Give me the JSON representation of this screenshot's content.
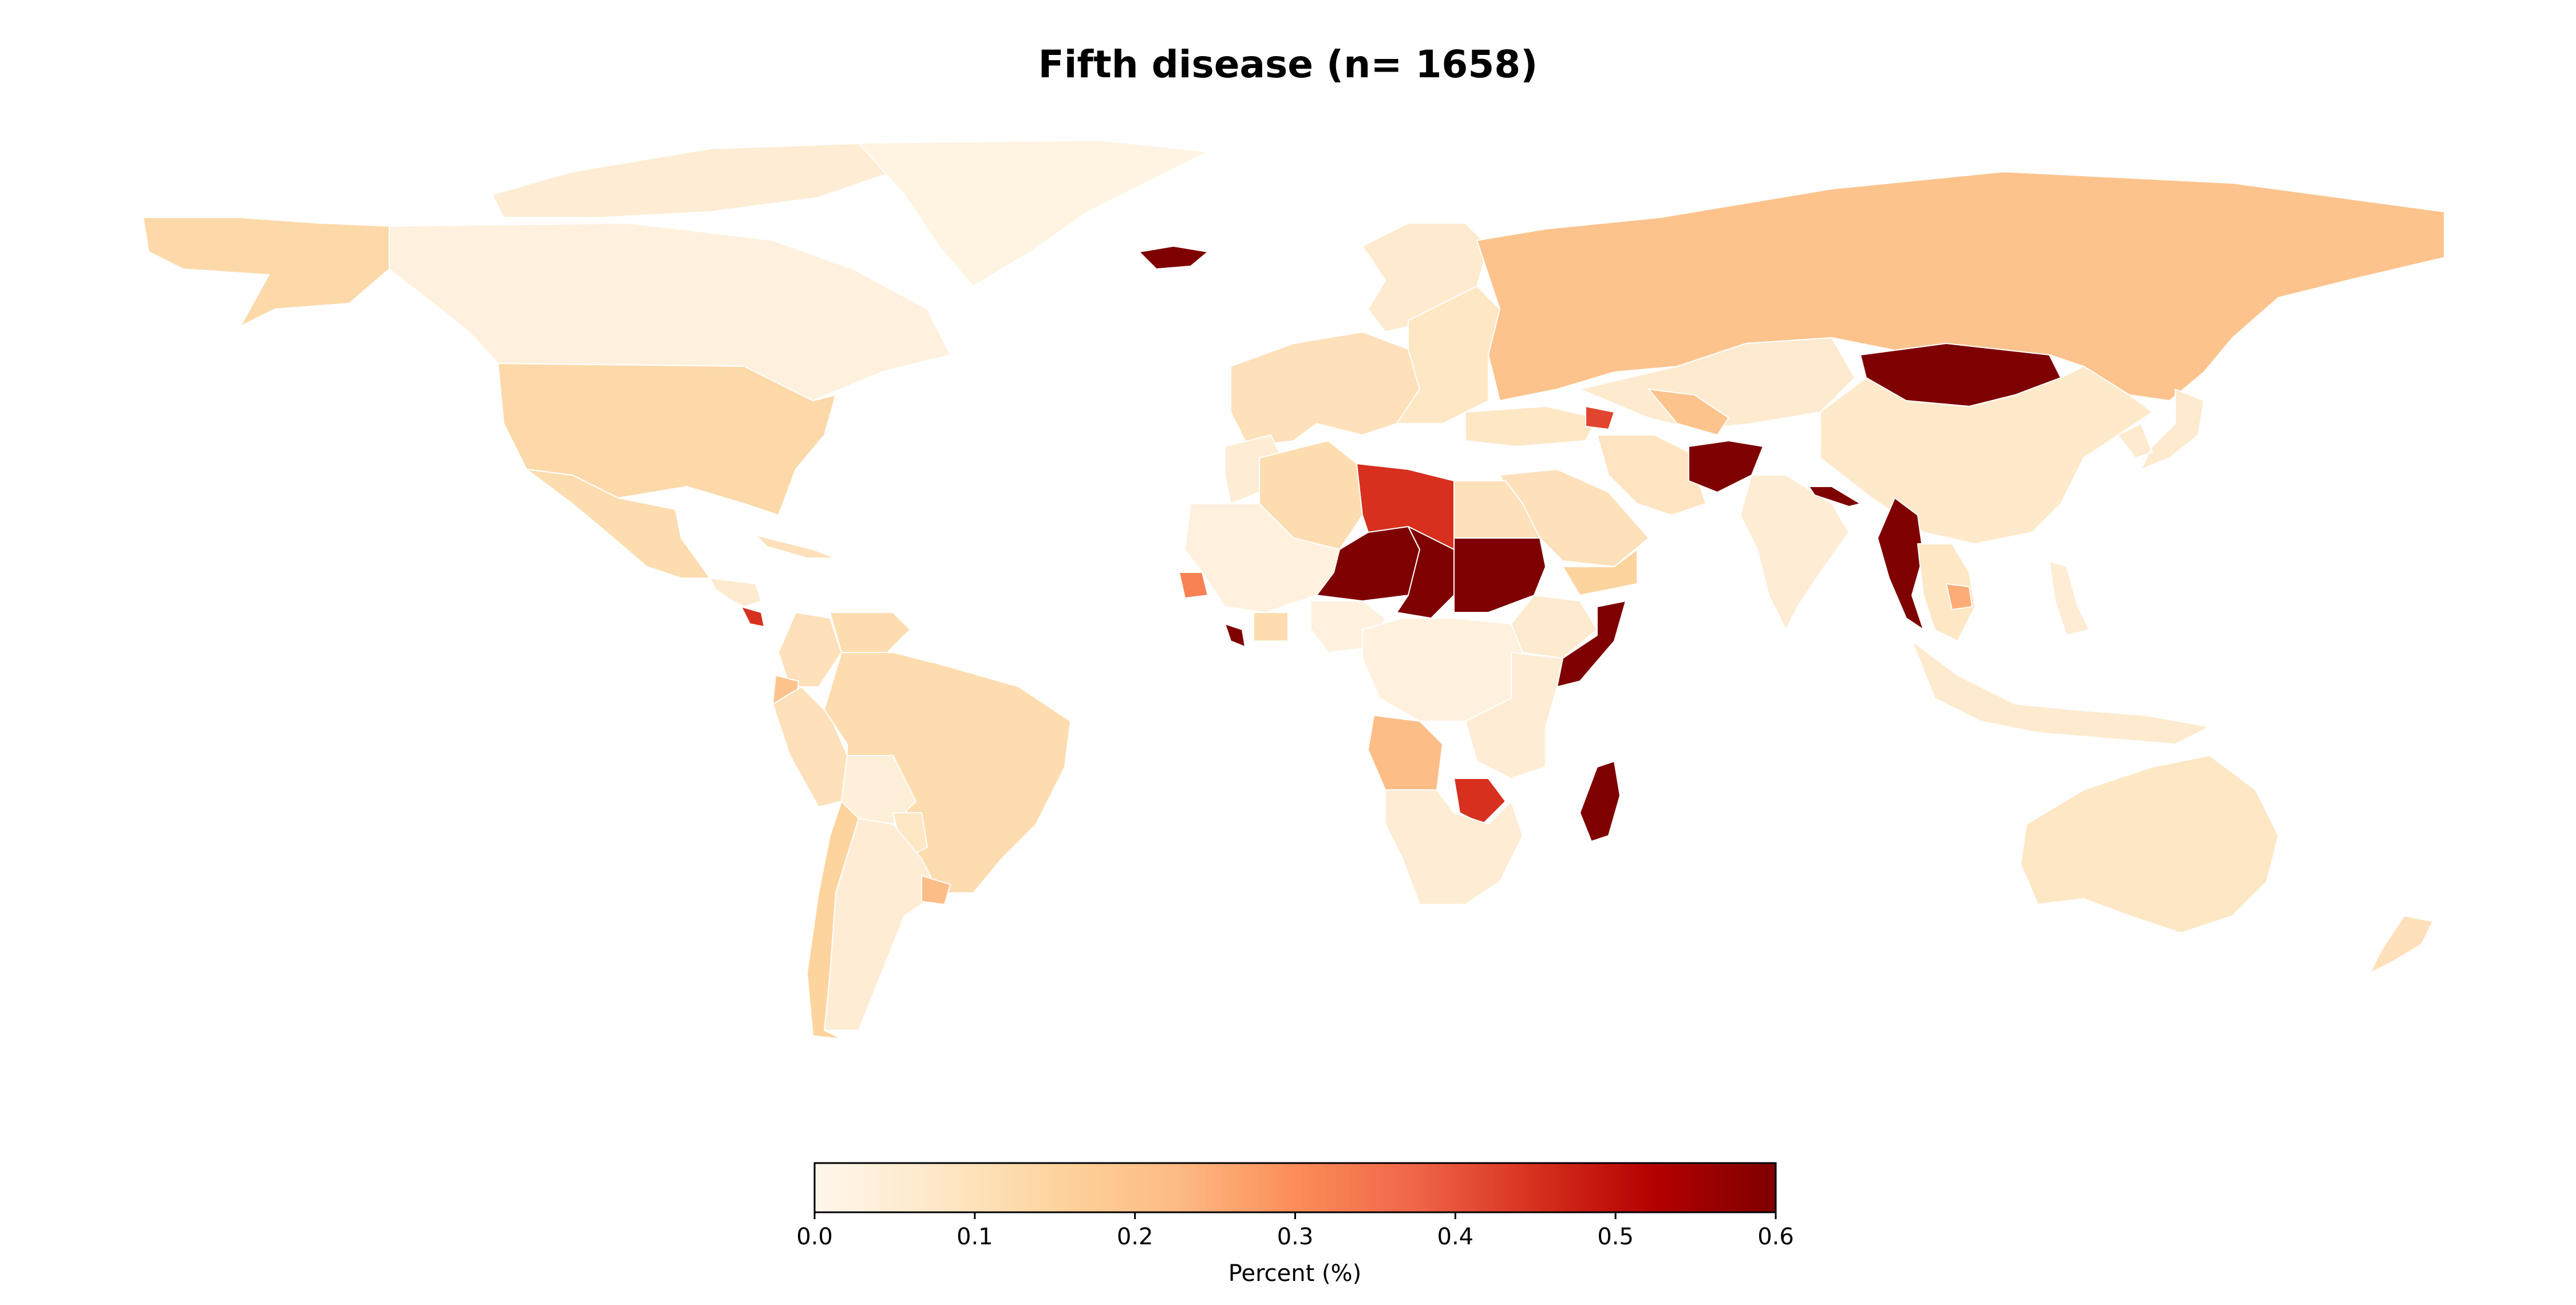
{
  "title": "Fifth disease (n= 1658)",
  "colormap": {
    "name": "OrRd",
    "stops": [
      "#fff7ec",
      "#fee8c8",
      "#fdd49e",
      "#fdbb84",
      "#fc8d59",
      "#ef6548",
      "#d7301f",
      "#b30000",
      "#7f0000"
    ]
  },
  "colorbar": {
    "label": "Percent (%)",
    "min": 0.0,
    "max": 0.6,
    "ticks": [
      "0.0",
      "0.1",
      "0.2",
      "0.3",
      "0.4",
      "0.5",
      "0.6"
    ]
  },
  "chart_data": {
    "type": "choropleth",
    "title": "Fifth disease (n= 1658)",
    "value_label": "Percent (%)",
    "range": [
      0.0,
      0.6
    ],
    "regions": [
      {
        "name": "Canada",
        "value": 0.03
      },
      {
        "name": "Arctic Islands",
        "value": 0.05
      },
      {
        "name": "Greenland",
        "value": 0.02
      },
      {
        "name": "Alaska",
        "value": 0.13
      },
      {
        "name": "USA",
        "value": 0.13
      },
      {
        "name": "Mexico",
        "value": 0.12
      },
      {
        "name": "Central America",
        "value": 0.06
      },
      {
        "name": "Costa Rica",
        "value": 0.45
      },
      {
        "name": "Cuba",
        "value": 0.1
      },
      {
        "name": "Colombia",
        "value": 0.1
      },
      {
        "name": "Venezuela",
        "value": 0.12
      },
      {
        "name": "Ecuador",
        "value": 0.2
      },
      {
        "name": "Peru",
        "value": 0.1
      },
      {
        "name": "Brazil",
        "value": 0.12
      },
      {
        "name": "Bolivia",
        "value": 0.04
      },
      {
        "name": "Paraguay",
        "value": 0.08
      },
      {
        "name": "Argentina",
        "value": 0.05
      },
      {
        "name": "Chile",
        "value": 0.15
      },
      {
        "name": "Uruguay",
        "value": 0.22
      },
      {
        "name": "Iceland",
        "value": 0.6
      },
      {
        "name": "Scandinavia",
        "value": 0.06
      },
      {
        "name": "Western Europe",
        "value": 0.1
      },
      {
        "name": "Eastern Europe",
        "value": 0.08
      },
      {
        "name": "Russia",
        "value": 0.2
      },
      {
        "name": "Kazakhstan",
        "value": 0.06
      },
      {
        "name": "Mongolia",
        "value": 0.6
      },
      {
        "name": "China",
        "value": 0.07
      },
      {
        "name": "Korea & Japan",
        "value": 0.06
      },
      {
        "name": "Turkey",
        "value": 0.08
      },
      {
        "name": "Azerbaijan",
        "value": 0.42
      },
      {
        "name": "Uzbekistan",
        "value": 0.2
      },
      {
        "name": "Iran",
        "value": 0.09
      },
      {
        "name": "Afghanistan",
        "value": 0.6
      },
      {
        "name": "Saudi Arabia",
        "value": 0.1
      },
      {
        "name": "Yemen",
        "value": 0.15
      },
      {
        "name": "India",
        "value": 0.05
      },
      {
        "name": "Nepal",
        "value": 0.6
      },
      {
        "name": "Myanmar",
        "value": 0.6
      },
      {
        "name": "Indochina",
        "value": 0.08
      },
      {
        "name": "Cambodia",
        "value": 0.25
      },
      {
        "name": "Indonesia",
        "value": 0.06
      },
      {
        "name": "Philippines",
        "value": 0.05
      },
      {
        "name": "Australia",
        "value": 0.08
      },
      {
        "name": "New Zealand",
        "value": 0.1
      },
      {
        "name": "Morocco",
        "value": 0.05
      },
      {
        "name": "Algeria",
        "value": 0.12
      },
      {
        "name": "Libya",
        "value": 0.45
      },
      {
        "name": "Egypt",
        "value": 0.1
      },
      {
        "name": "Mauritania & Mali",
        "value": 0.03
      },
      {
        "name": "Senegal",
        "value": 0.32
      },
      {
        "name": "Niger",
        "value": 0.6
      },
      {
        "name": "Chad",
        "value": 0.6
      },
      {
        "name": "Sudan",
        "value": 0.6
      },
      {
        "name": "Ethiopia",
        "value": 0.06
      },
      {
        "name": "Somalia",
        "value": 0.6
      },
      {
        "name": "Liberia",
        "value": 0.6
      },
      {
        "name": "Ghana",
        "value": 0.12
      },
      {
        "name": "Nigeria",
        "value": 0.03
      },
      {
        "name": "Central Africa",
        "value": 0.03
      },
      {
        "name": "East Africa",
        "value": 0.05
      },
      {
        "name": "Angola",
        "value": 0.22
      },
      {
        "name": "Zimbabwe",
        "value": 0.45
      },
      {
        "name": "Southern Africa",
        "value": 0.05
      },
      {
        "name": "Madagascar",
        "value": 0.6
      }
    ]
  }
}
